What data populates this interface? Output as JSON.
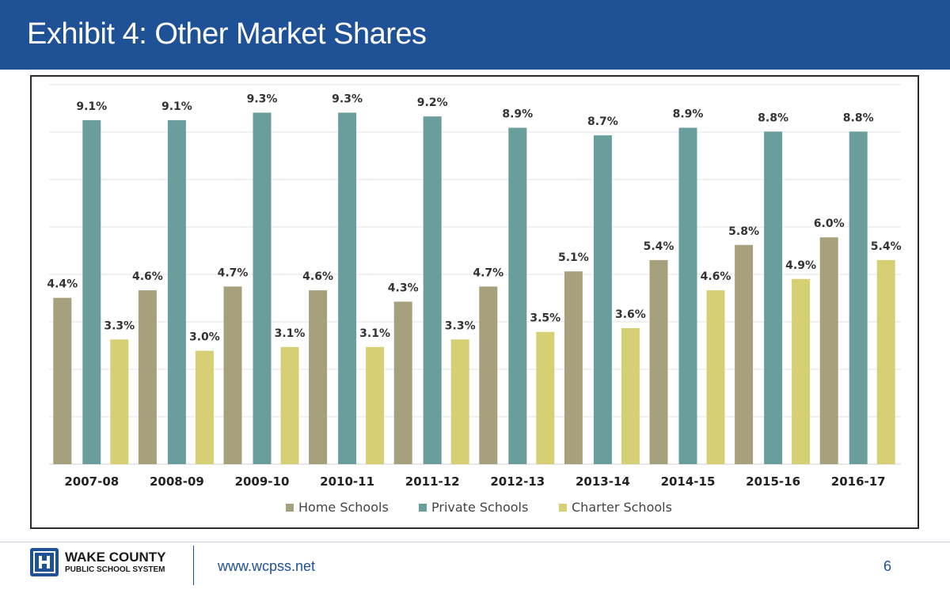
{
  "header": {
    "title": "Exhibit 4: Other Market Shares"
  },
  "footer": {
    "logo_name": "WAKE COUNTY",
    "logo_sub": "PUBLIC SCHOOL SYSTEM",
    "url": "www.wcpss.net",
    "page_number": "6"
  },
  "colors": {
    "header_bg": "#1f5197",
    "home": "#a7a07d",
    "private": "#6a9e9c",
    "charter": "#d6cf74"
  },
  "chart_data": {
    "type": "bar",
    "title": "",
    "xlabel": "",
    "ylabel": "",
    "ylim": [
      0,
      10
    ],
    "grid": true,
    "legend_position": "bottom",
    "categories": [
      "2007-08",
      "2008-09",
      "2009-10",
      "2010-11",
      "2011-12",
      "2012-13",
      "2013-14",
      "2014-15",
      "2015-16",
      "2016-17"
    ],
    "series": [
      {
        "name": "Home Schools",
        "color": "#a7a07d",
        "values": [
          4.4,
          4.6,
          4.7,
          4.6,
          4.3,
          4.7,
          5.1,
          5.4,
          5.8,
          6.0
        ],
        "labels": [
          "4.4%",
          "4.6%",
          "4.7%",
          "4.6%",
          "4.3%",
          "4.7%",
          "5.1%",
          "5.4%",
          "5.8%",
          "6.0%"
        ]
      },
      {
        "name": "Private Schools",
        "color": "#6a9e9c",
        "values": [
          9.1,
          9.1,
          9.3,
          9.3,
          9.2,
          8.9,
          8.7,
          8.9,
          8.8,
          8.8
        ],
        "labels": [
          "9.1%",
          "9.1%",
          "9.3%",
          "9.3%",
          "9.2%",
          "8.9%",
          "8.7%",
          "8.9%",
          "8.8%",
          "8.8%"
        ]
      },
      {
        "name": "Charter Schools",
        "color": "#d6cf74",
        "values": [
          3.3,
          3.0,
          3.1,
          3.1,
          3.3,
          3.5,
          3.6,
          4.6,
          4.9,
          5.4
        ],
        "labels": [
          "3.3%",
          "3.0%",
          "3.1%",
          "3.1%",
          "3.3%",
          "3.5%",
          "3.6%",
          "4.6%",
          "4.9%",
          "5.4%"
        ]
      }
    ]
  }
}
